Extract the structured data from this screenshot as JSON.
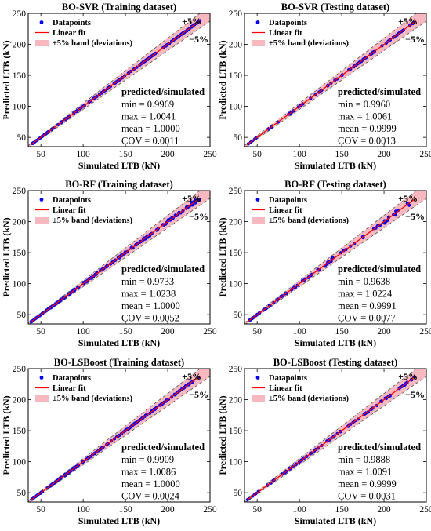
{
  "chart_data": [
    {
      "type": "scatter",
      "title": "BO-SVR (Training dataset)",
      "xlabel": "Simulated LTB (kN)",
      "ylabel": "Predicted LTB (kN)",
      "xlim": [
        35,
        250
      ],
      "ylim": [
        35,
        250
      ],
      "xticks": [
        50,
        100,
        150,
        200,
        250
      ],
      "yticks": [
        50,
        100,
        150,
        200,
        250
      ],
      "legend": [
        "Datapoints",
        "Linear fit",
        "±5% band (deviations)"
      ],
      "legend_position": "top-left",
      "band_labels": [
        "+5%",
        "−5%"
      ],
      "stats": {
        "heading": "predicted/simulated",
        "lines": [
          "min = 0.9969",
          "max = 1.0041",
          "mean = 1.0000",
          "COV = 0.0011"
        ],
        "min": 0.9969,
        "max": 1.0041,
        "mean": 1.0,
        "cov": 0.0011
      },
      "x_range": [
        38,
        238
      ],
      "n_points": 170,
      "colors": {
        "points": "#0000ee",
        "fit": "#ff0000",
        "band": "#f7b9bf"
      }
    },
    {
      "type": "scatter",
      "title": "BO-SVR (Testing dataset)",
      "xlabel": "Simulated LTB (kN)",
      "ylabel": "Predicted LTB (kN)",
      "xlim": [
        35,
        250
      ],
      "ylim": [
        35,
        250
      ],
      "xticks": [
        50,
        100,
        150,
        200,
        250
      ],
      "yticks": [
        50,
        100,
        150,
        200,
        250
      ],
      "legend": [
        "Datapoints",
        "Linear fit",
        "±5% band (deviations)"
      ],
      "legend_position": "top-left",
      "band_labels": [
        "+5%",
        "−5%"
      ],
      "stats": {
        "heading": "predicted/simulated",
        "lines": [
          "min = 0.9960",
          "max = 1.0061",
          "mean = 0.9999",
          "COV = 0.0013"
        ],
        "min": 0.996,
        "max": 1.0061,
        "mean": 0.9999,
        "cov": 0.0013
      },
      "x_range": [
        38,
        238
      ],
      "n_points": 80,
      "colors": {
        "points": "#0000ee",
        "fit": "#ff0000",
        "band": "#f7b9bf"
      }
    },
    {
      "type": "scatter",
      "title": "BO-RF (Training dataset)",
      "xlabel": "Simulated LTB (kN)",
      "ylabel": "Predicted LTB (kN)",
      "xlim": [
        35,
        250
      ],
      "ylim": [
        35,
        250
      ],
      "xticks": [
        50,
        100,
        150,
        200,
        250
      ],
      "yticks": [
        50,
        100,
        150,
        200,
        250
      ],
      "legend": [
        "Datapoints",
        "Linear fit",
        "±5% band (deviations)"
      ],
      "legend_position": "top-left",
      "band_labels": [
        "+5%",
        "−5%"
      ],
      "stats": {
        "heading": "predicted/simulated",
        "lines": [
          "min = 0.9733",
          "max = 1.0238",
          "mean = 1.0000",
          "COV = 0.0052"
        ],
        "min": 0.9733,
        "max": 1.0238,
        "mean": 1.0,
        "cov": 0.0052
      },
      "x_range": [
        38,
        238
      ],
      "n_points": 170,
      "colors": {
        "points": "#0000ee",
        "fit": "#ff0000",
        "band": "#f7b9bf"
      }
    },
    {
      "type": "scatter",
      "title": "BO-RF (Testing dataset)",
      "xlabel": "Simulated LTB (kN)",
      "ylabel": "Predicted LTB (kN)",
      "xlim": [
        35,
        250
      ],
      "ylim": [
        35,
        250
      ],
      "xticks": [
        50,
        100,
        150,
        200,
        250
      ],
      "yticks": [
        50,
        100,
        150,
        200,
        250
      ],
      "legend": [
        "Datapoints",
        "Linear fit",
        "±5% band (deviations)"
      ],
      "legend_position": "top-left",
      "band_labels": [
        "+5%",
        "−5%"
      ],
      "stats": {
        "heading": "predicted/simulated",
        "lines": [
          "min = 0.9638",
          "max = 1.0224",
          "mean = 0.9991",
          "COV = 0.0077"
        ],
        "min": 0.9638,
        "max": 1.0224,
        "mean": 0.9991,
        "cov": 0.0077
      },
      "x_range": [
        38,
        238
      ],
      "n_points": 80,
      "colors": {
        "points": "#0000ee",
        "fit": "#ff0000",
        "band": "#f7b9bf"
      }
    },
    {
      "type": "scatter",
      "title": "BO-LSBoost (Training dataset)",
      "xlabel": "Simulated LTB (kN)",
      "ylabel": "Predicted LTB (kN)",
      "xlim": [
        35,
        250
      ],
      "ylim": [
        35,
        250
      ],
      "xticks": [
        50,
        100,
        150,
        200,
        250
      ],
      "yticks": [
        50,
        100,
        150,
        200,
        250
      ],
      "legend": [
        "Datapoints",
        "Linear fit",
        "±5% band (deviations)"
      ],
      "legend_position": "top-left",
      "band_labels": [
        "+5%",
        "−5%"
      ],
      "stats": {
        "heading": "predicted/simulated",
        "lines": [
          "min = 0.9909",
          "max = 1.0086",
          "mean = 1.0000",
          "COV = 0.0024"
        ],
        "min": 0.9909,
        "max": 1.0086,
        "mean": 1.0,
        "cov": 0.0024
      },
      "x_range": [
        38,
        238
      ],
      "n_points": 170,
      "colors": {
        "points": "#0000ee",
        "fit": "#ff0000",
        "band": "#f7b9bf"
      }
    },
    {
      "type": "scatter",
      "title": "BO-LSBoost (Testing dataset)",
      "xlabel": "Simulated LTB (kN)",
      "ylabel": "Predicted LTB (kN)",
      "xlim": [
        35,
        250
      ],
      "ylim": [
        35,
        250
      ],
      "xticks": [
        50,
        100,
        150,
        200,
        250
      ],
      "yticks": [
        50,
        100,
        150,
        200,
        250
      ],
      "legend": [
        "Datapoints",
        "Linear fit",
        "±5% band (deviations)"
      ],
      "legend_position": "top-left",
      "band_labels": [
        "+5%",
        "−5%"
      ],
      "stats": {
        "heading": "predicted/simulated",
        "lines": [
          "min = 0.9888",
          "max = 1.0091",
          "mean = 0.9999",
          "COV = 0.0031"
        ],
        "min": 0.9888,
        "max": 1.0091,
        "mean": 0.9999,
        "cov": 0.0031
      },
      "x_range": [
        38,
        238
      ],
      "n_points": 80,
      "colors": {
        "points": "#0000ee",
        "fit": "#ff0000",
        "band": "#f7b9bf"
      }
    }
  ]
}
